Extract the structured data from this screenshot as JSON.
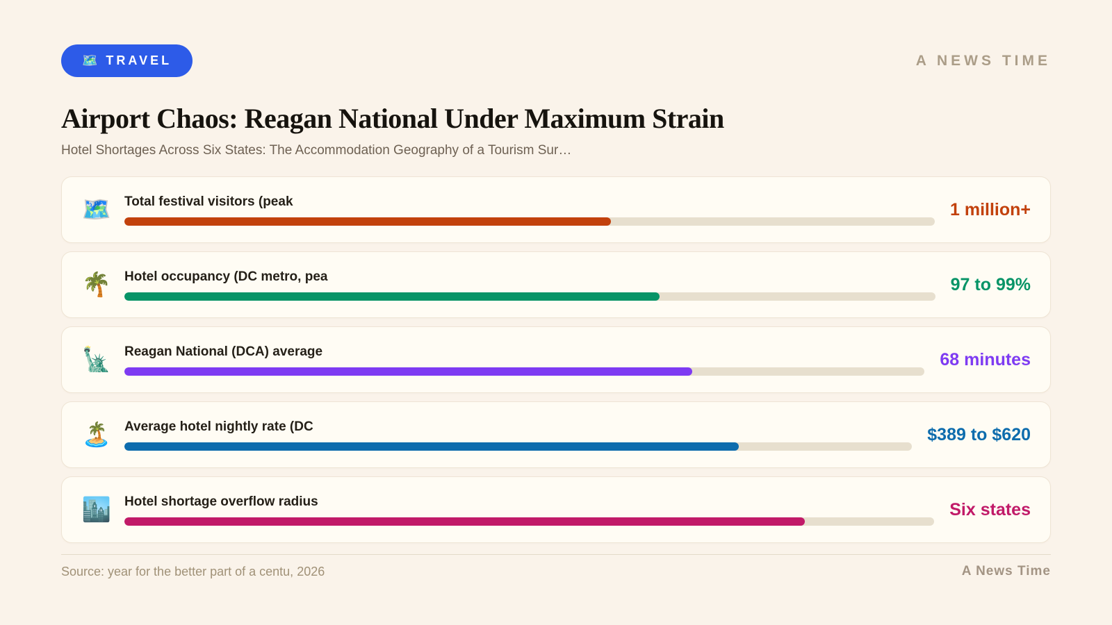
{
  "badge": {
    "icon": "🗺️",
    "label": "TRAVEL"
  },
  "brand": {
    "header": "A NEWS TIME",
    "footer": "A News Time"
  },
  "header": {
    "title": "Airport Chaos: Reagan National Under Maximum Strain",
    "subtitle": "Hotel Shortages Across Six States: The Accommodation Geography of a Tourism Sur…"
  },
  "stats": [
    {
      "icon": "🗺️",
      "icon_name": "world-map-icon",
      "label": "Total festival visitors (peak",
      "value": "1 million+",
      "color": "#c2410c",
      "percent": 60
    },
    {
      "icon": "🌴",
      "icon_name": "palm-tree-icon",
      "label": "Hotel occupancy (DC metro, pea",
      "value": "97 to 99%",
      "color": "#079467",
      "percent": 66
    },
    {
      "icon": "🗽",
      "icon_name": "statue-of-liberty-icon",
      "label": "Reagan National (DCA) average",
      "value": "68 minutes",
      "color": "#7e3bf2",
      "percent": 71
    },
    {
      "icon": "🏝️",
      "icon_name": "desert-island-icon",
      "label": "Average hotel nightly rate (DC",
      "value": "$389 to $620",
      "color": "#0d6cad",
      "percent": 78
    },
    {
      "icon": "🏙️",
      "icon_name": "cityscape-icon",
      "label": "Hotel shortage overflow radius",
      "value": "Six states",
      "color": "#c11a68",
      "percent": 84
    }
  ],
  "footer": {
    "source": "Source: year for the better part of a centu, 2026"
  },
  "chart_data": {
    "type": "bar",
    "orientation": "horizontal",
    "title": "Airport Chaos: Reagan National Under Maximum Strain",
    "subtitle": "Hotel Shortages Across Six States: The Accommodation Geography of a Tourism Sur…",
    "categories": [
      "Total festival visitors (peak",
      "Hotel occupancy (DC metro, pea",
      "Reagan National (DCA) average",
      "Average hotel nightly rate (DC",
      "Hotel shortage overflow radius"
    ],
    "values": [
      60,
      66,
      71,
      78,
      84
    ],
    "value_labels": [
      "1 million+",
      "97 to 99%",
      "68 minutes",
      "$389 to $620",
      "Six states"
    ],
    "bar_colors": [
      "#c2410c",
      "#079467",
      "#7e3bf2",
      "#0d6cad",
      "#c11a68"
    ],
    "xlim": [
      0,
      100
    ],
    "grid": false,
    "legend": false
  }
}
